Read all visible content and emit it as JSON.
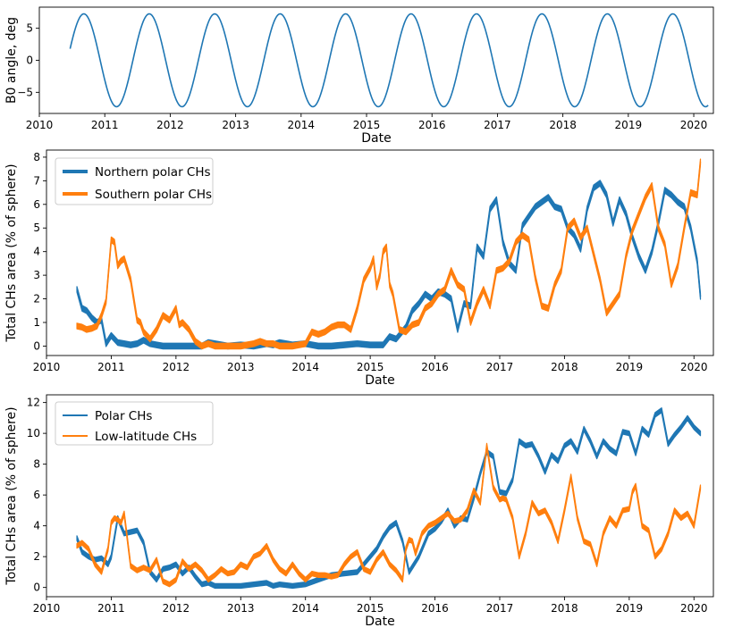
{
  "colors": {
    "blue": "#1f77b4",
    "orange": "#ff7f0e"
  },
  "chart_data": [
    {
      "type": "line",
      "title": "",
      "xlabel": "Date",
      "ylabel": "B0 angle, deg",
      "xlim": [
        2010.0,
        2020.3
      ],
      "ylim": [
        -8.3,
        8.3
      ],
      "xticks": [
        "2010",
        "2011",
        "2012",
        "2013",
        "2014",
        "2015",
        "2016",
        "2017",
        "2018",
        "2019",
        "2020"
      ],
      "yticks": [
        "5",
        "0",
        "−5"
      ],
      "ytick_values": [
        5,
        0,
        -5
      ],
      "series": [
        {
          "name": "B0 angle",
          "color": "#1f77b4",
          "function": "7.25*sin(2*pi*(t-2010.43)) with t in years",
          "x_range": [
            2010.47,
            2020.22
          ]
        }
      ]
    },
    {
      "type": "area",
      "title": "",
      "xlabel": "Date",
      "ylabel": "Total CHs area (% of sphere)",
      "xlim": [
        2010.0,
        2020.3
      ],
      "ylim": [
        -0.4,
        8.3
      ],
      "xticks": [
        "2010",
        "2011",
        "2012",
        "2013",
        "2014",
        "2015",
        "2016",
        "2017",
        "2018",
        "2019",
        "2020"
      ],
      "yticks": [
        "0",
        "1",
        "2",
        "3",
        "4",
        "5",
        "6",
        "7",
        "8"
      ],
      "ytick_values": [
        0,
        1,
        2,
        3,
        4,
        5,
        6,
        7,
        8
      ],
      "legend": "upper-left",
      "series": [
        {
          "name": "Northern polar CHs",
          "color": "#1f77b4",
          "band_halfwidth": 0.12,
          "x": [
            2010.47,
            2010.55,
            2010.62,
            2010.7,
            2010.78,
            2010.85,
            2010.92,
            2011.0,
            2011.1,
            2011.2,
            2011.3,
            2011.4,
            2011.5,
            2011.6,
            2011.7,
            2011.8,
            2012.0,
            2012.2,
            2012.4,
            2012.5,
            2012.6,
            2012.8,
            2013.0,
            2013.2,
            2013.4,
            2013.5,
            2013.6,
            2013.8,
            2014.0,
            2014.2,
            2014.4,
            2014.6,
            2014.8,
            2015.0,
            2015.2,
            2015.3,
            2015.4,
            2015.55,
            2015.65,
            2015.75,
            2015.85,
            2015.95,
            2016.05,
            2016.15,
            2016.25,
            2016.35,
            2016.45,
            2016.55,
            2016.65,
            2016.75,
            2016.85,
            2016.95,
            2017.05,
            2017.15,
            2017.25,
            2017.35,
            2017.45,
            2017.55,
            2017.65,
            2017.75,
            2017.85,
            2017.95,
            2018.05,
            2018.15,
            2018.25,
            2018.35,
            2018.45,
            2018.55,
            2018.65,
            2018.75,
            2018.85,
            2018.95,
            2019.05,
            2019.15,
            2019.25,
            2019.35,
            2019.45,
            2019.55,
            2019.65,
            2019.75,
            2019.85,
            2019.95,
            2020.05,
            2020.1
          ],
          "values": [
            2.4,
            1.6,
            1.5,
            1.2,
            1.0,
            1.1,
            0.1,
            0.45,
            0.15,
            0.1,
            0.05,
            0.1,
            0.25,
            0.1,
            0.05,
            0.0,
            0.0,
            0.0,
            0.0,
            0.15,
            0.1,
            0.0,
            0.05,
            0.0,
            0.1,
            0.05,
            0.15,
            0.05,
            0.1,
            0.0,
            0.0,
            0.05,
            0.1,
            0.05,
            0.05,
            0.4,
            0.3,
            0.8,
            1.5,
            1.8,
            2.2,
            2.0,
            2.3,
            2.2,
            2.0,
            0.7,
            1.8,
            1.7,
            4.2,
            3.8,
            5.8,
            6.2,
            4.4,
            3.5,
            3.2,
            5.1,
            5.5,
            5.9,
            6.1,
            6.3,
            5.9,
            5.8,
            5.0,
            4.7,
            4.1,
            5.8,
            6.7,
            6.9,
            6.4,
            5.2,
            6.2,
            5.6,
            4.6,
            3.8,
            3.2,
            4.0,
            5.2,
            6.6,
            6.4,
            6.1,
            5.9,
            5.0,
            3.6,
            2.1
          ]
        },
        {
          "name": "Southern polar CHs",
          "color": "#ff7f0e",
          "band_halfwidth": 0.12,
          "x": [
            2010.47,
            2010.55,
            2010.62,
            2010.7,
            2010.78,
            2010.85,
            2010.92,
            2011.0,
            2011.05,
            2011.1,
            2011.15,
            2011.2,
            2011.3,
            2011.4,
            2011.45,
            2011.5,
            2011.6,
            2011.7,
            2011.8,
            2011.9,
            2012.0,
            2012.05,
            2012.1,
            2012.2,
            2012.3,
            2012.4,
            2012.5,
            2012.6,
            2012.8,
            2013.0,
            2013.2,
            2013.3,
            2013.4,
            2013.5,
            2013.6,
            2013.8,
            2014.0,
            2014.1,
            2014.2,
            2014.3,
            2014.4,
            2014.5,
            2014.6,
            2014.7,
            2014.8,
            2014.9,
            2015.0,
            2015.05,
            2015.1,
            2015.15,
            2015.2,
            2015.25,
            2015.3,
            2015.35,
            2015.45,
            2015.55,
            2015.65,
            2015.75,
            2015.85,
            2015.95,
            2016.05,
            2016.15,
            2016.25,
            2016.35,
            2016.45,
            2016.55,
            2016.65,
            2016.75,
            2016.85,
            2016.95,
            2017.05,
            2017.15,
            2017.25,
            2017.35,
            2017.45,
            2017.55,
            2017.65,
            2017.75,
            2017.85,
            2017.95,
            2018.05,
            2018.15,
            2018.25,
            2018.35,
            2018.45,
            2018.55,
            2018.65,
            2018.75,
            2018.85,
            2018.95,
            2019.05,
            2019.15,
            2019.25,
            2019.35,
            2019.45,
            2019.55,
            2019.65,
            2019.75,
            2019.85,
            2019.95,
            2020.05,
            2020.1
          ],
          "values": [
            0.85,
            0.8,
            0.7,
            0.75,
            0.85,
            1.3,
            1.9,
            4.5,
            4.4,
            3.4,
            3.6,
            3.7,
            2.8,
            1.1,
            1.0,
            0.6,
            0.3,
            0.7,
            1.3,
            1.1,
            1.6,
            0.9,
            1.0,
            0.7,
            0.2,
            0.0,
            0.1,
            0.0,
            0.0,
            0.0,
            0.1,
            0.2,
            0.1,
            0.1,
            0.0,
            0.0,
            0.1,
            0.6,
            0.5,
            0.6,
            0.8,
            0.9,
            0.9,
            0.7,
            1.6,
            2.8,
            3.3,
            3.7,
            2.5,
            3.0,
            4.0,
            4.2,
            2.6,
            2.2,
            0.7,
            0.6,
            0.9,
            1.0,
            1.6,
            1.8,
            2.2,
            2.4,
            3.2,
            2.6,
            2.4,
            1.0,
            1.8,
            2.4,
            1.7,
            3.2,
            3.3,
            3.6,
            4.4,
            4.7,
            4.5,
            2.9,
            1.7,
            1.6,
            2.6,
            3.2,
            5.0,
            5.3,
            4.6,
            5.0,
            3.9,
            2.8,
            1.4,
            1.8,
            2.2,
            3.8,
            4.9,
            5.6,
            6.3,
            6.8,
            5.0,
            4.3,
            2.6,
            3.4,
            5.0,
            6.5,
            6.4,
            7.8
          ]
        }
      ]
    },
    {
      "type": "area",
      "title": "",
      "xlabel": "Date",
      "ylabel": "Total CHs area (% of sphere)",
      "xlim": [
        2010.0,
        2020.3
      ],
      "ylim": [
        -0.6,
        12.5
      ],
      "xticks": [
        "2010",
        "2011",
        "2012",
        "2013",
        "2014",
        "2015",
        "2016",
        "2017",
        "2018",
        "2019",
        "2020"
      ],
      "yticks": [
        "0",
        "2",
        "4",
        "6",
        "8",
        "10",
        "12"
      ],
      "ytick_values": [
        0,
        2,
        4,
        6,
        8,
        10,
        12
      ],
      "legend": "upper-left",
      "series": [
        {
          "name": "Polar CHs",
          "color": "#1f77b4",
          "band_halfwidth": 0.15,
          "x": [
            2010.47,
            2010.55,
            2010.65,
            2010.75,
            2010.85,
            2010.95,
            2011.0,
            2011.1,
            2011.2,
            2011.3,
            2011.4,
            2011.5,
            2011.6,
            2011.7,
            2011.8,
            2011.9,
            2012.0,
            2012.1,
            2012.2,
            2012.3,
            2012.4,
            2012.5,
            2012.6,
            2012.8,
            2013.0,
            2013.2,
            2013.4,
            2013.5,
            2013.6,
            2013.8,
            2014.0,
            2014.2,
            2014.4,
            2014.6,
            2014.8,
            2014.9,
            2015.0,
            2015.1,
            2015.2,
            2015.3,
            2015.4,
            2015.5,
            2015.6,
            2015.75,
            2015.9,
            2016.0,
            2016.1,
            2016.2,
            2016.3,
            2016.4,
            2016.5,
            2016.6,
            2016.7,
            2016.8,
            2016.9,
            2017.0,
            2017.1,
            2017.2,
            2017.3,
            2017.4,
            2017.5,
            2017.6,
            2017.7,
            2017.8,
            2017.9,
            2018.0,
            2018.1,
            2018.2,
            2018.3,
            2018.4,
            2018.5,
            2018.6,
            2018.7,
            2018.8,
            2018.9,
            2019.0,
            2019.1,
            2019.2,
            2019.3,
            2019.4,
            2019.5,
            2019.6,
            2019.7,
            2019.8,
            2019.9,
            2020.0,
            2020.1
          ],
          "values": [
            3.2,
            2.3,
            2.0,
            1.8,
            1.9,
            1.5,
            2.0,
            4.5,
            3.5,
            3.6,
            3.7,
            2.9,
            1.0,
            0.5,
            1.2,
            1.3,
            1.5,
            0.9,
            1.3,
            0.7,
            0.2,
            0.3,
            0.1,
            0.1,
            0.1,
            0.2,
            0.3,
            0.1,
            0.2,
            0.1,
            0.2,
            0.5,
            0.8,
            0.9,
            1.0,
            1.5,
            2.0,
            2.5,
            3.3,
            3.9,
            4.2,
            3.0,
            1.0,
            2.0,
            3.5,
            3.8,
            4.3,
            5.0,
            4.0,
            4.5,
            4.4,
            5.8,
            7.4,
            8.8,
            8.5,
            6.2,
            6.1,
            7.0,
            9.5,
            9.2,
            9.3,
            8.5,
            7.5,
            8.6,
            8.2,
            9.2,
            9.5,
            8.8,
            10.3,
            9.5,
            8.5,
            9.5,
            9.0,
            8.7,
            10.1,
            10.0,
            8.7,
            10.3,
            9.9,
            11.2,
            11.5,
            9.3,
            9.9,
            10.4,
            11.0,
            10.4,
            10.0
          ]
        },
        {
          "name": "Low-latitude CHs",
          "color": "#ff7f0e",
          "band_halfwidth": 0.15,
          "x": [
            2010.47,
            2010.55,
            2010.65,
            2010.75,
            2010.85,
            2010.95,
            2011.0,
            2011.05,
            2011.1,
            2011.15,
            2011.2,
            2011.3,
            2011.4,
            2011.5,
            2011.6,
            2011.7,
            2011.8,
            2011.9,
            2012.0,
            2012.1,
            2012.2,
            2012.3,
            2012.4,
            2012.5,
            2012.6,
            2012.7,
            2012.8,
            2012.9,
            2013.0,
            2013.1,
            2013.2,
            2013.3,
            2013.4,
            2013.5,
            2013.6,
            2013.7,
            2013.8,
            2013.9,
            2014.0,
            2014.1,
            2014.2,
            2014.3,
            2014.4,
            2014.5,
            2014.6,
            2014.7,
            2014.8,
            2014.9,
            2015.0,
            2015.1,
            2015.2,
            2015.3,
            2015.4,
            2015.5,
            2015.55,
            2015.6,
            2015.65,
            2015.7,
            2015.8,
            2015.9,
            2016.0,
            2016.1,
            2016.2,
            2016.3,
            2016.4,
            2016.5,
            2016.6,
            2016.7,
            2016.8,
            2016.9,
            2017.0,
            2017.05,
            2017.1,
            2017.2,
            2017.3,
            2017.4,
            2017.5,
            2017.6,
            2017.7,
            2017.8,
            2017.9,
            2018.0,
            2018.1,
            2018.2,
            2018.3,
            2018.4,
            2018.5,
            2018.6,
            2018.7,
            2018.8,
            2018.9,
            2019.0,
            2019.05,
            2019.1,
            2019.2,
            2019.3,
            2019.4,
            2019.5,
            2019.6,
            2019.7,
            2019.8,
            2019.9,
            2020.0,
            2020.1
          ],
          "values": [
            2.7,
            2.9,
            2.5,
            1.5,
            1.0,
            2.5,
            4.2,
            4.5,
            4.4,
            4.2,
            4.8,
            1.4,
            1.1,
            1.3,
            1.1,
            1.8,
            0.4,
            0.2,
            0.5,
            1.7,
            1.2,
            1.5,
            1.1,
            0.5,
            0.8,
            1.2,
            0.9,
            1.0,
            1.5,
            1.3,
            2.0,
            2.2,
            2.7,
            1.8,
            1.2,
            0.9,
            1.5,
            0.9,
            0.5,
            0.9,
            0.8,
            0.8,
            0.7,
            0.8,
            1.5,
            2.0,
            2.3,
            1.2,
            1.0,
            1.8,
            2.3,
            1.5,
            1.1,
            0.5,
            2.5,
            3.1,
            3.0,
            2.2,
            3.5,
            4.0,
            4.2,
            4.5,
            4.8,
            4.3,
            4.4,
            5.0,
            6.3,
            5.5,
            9.2,
            6.5,
            5.7,
            5.8,
            5.7,
            4.5,
            2.0,
            3.5,
            5.5,
            4.8,
            5.0,
            4.2,
            3.0,
            5.0,
            7.2,
            4.5,
            3.0,
            2.8,
            1.5,
            3.5,
            4.5,
            4.0,
            5.0,
            5.1,
            6.2,
            6.6,
            4.0,
            3.7,
            2.0,
            2.5,
            3.5,
            5.0,
            4.5,
            4.8,
            4.0,
            6.5
          ]
        }
      ]
    }
  ]
}
